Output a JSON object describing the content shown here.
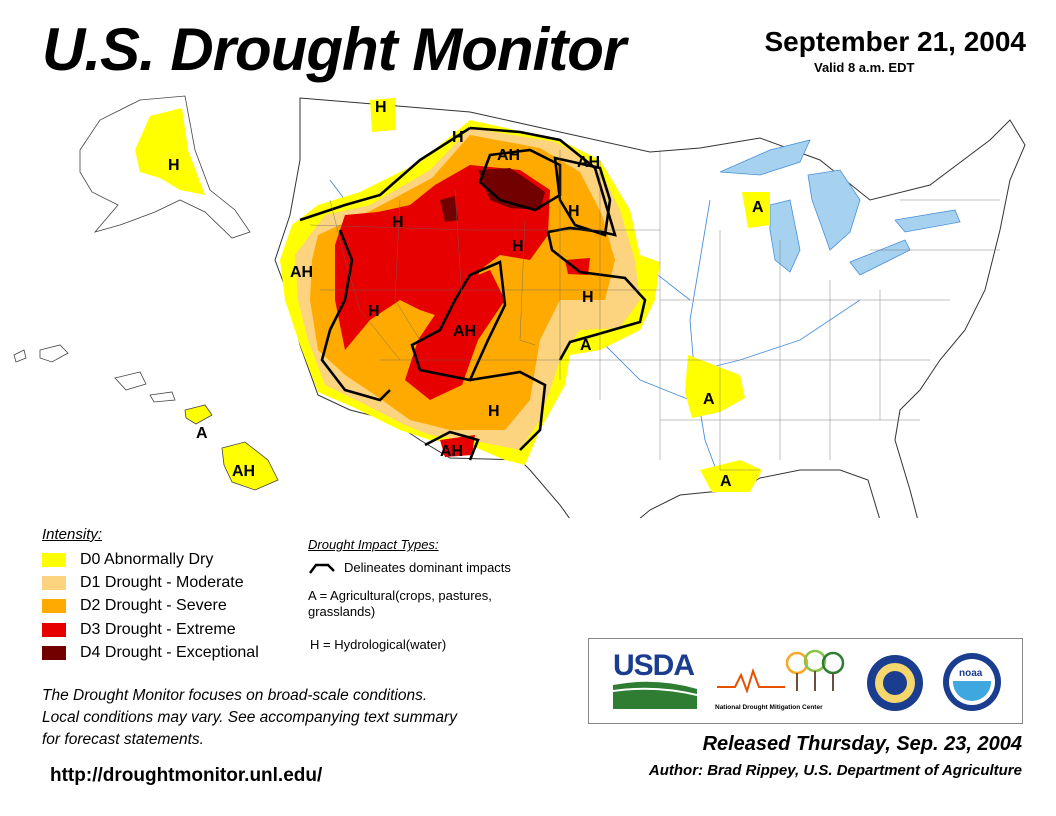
{
  "header": {
    "title": "U.S. Drought Monitor",
    "date": "September 21, 2004",
    "valid": "Valid 8 a.m. EDT"
  },
  "legend": {
    "title": "Intensity:",
    "items": [
      {
        "code": "D0",
        "label": "D0 Abnormally Dry",
        "color": "#ffff00"
      },
      {
        "code": "D1",
        "label": "D1 Drought - Moderate",
        "color": "#fcd37f"
      },
      {
        "code": "D2",
        "label": "D2 Drought - Severe",
        "color": "#ffaa00"
      },
      {
        "code": "D3",
        "label": "D3 Drought - Extreme",
        "color": "#e60000"
      },
      {
        "code": "D4",
        "label": "D4 Drought - Exceptional",
        "color": "#730000"
      }
    ]
  },
  "impact_types": {
    "title": "Drought Impact Types:",
    "line": "Delineates dominant impacts",
    "agricultural": "A = Agricultural(crops, pastures, grasslands)",
    "hydrological": "H = Hydrological(water)"
  },
  "map_labels": {
    "ak": "H",
    "hi_small": "A",
    "hi": "AH",
    "mt_nw": "H",
    "mt": "H",
    "nd_w": "AH",
    "nd_e": "AH",
    "sd": "H",
    "id": "H",
    "wy": "H",
    "ca_n": "AH",
    "nv": "H",
    "co": "AH",
    "ks": "H",
    "ok": "A",
    "nm": "H",
    "az": "AH",
    "mi": "A",
    "ar": "A",
    "la": "A"
  },
  "colors": {
    "d0": "#ffff00",
    "d1": "#fcd37f",
    "d2": "#ffaa00",
    "d3": "#e60000",
    "d4": "#730000",
    "water": "#a6d2f0",
    "river": "#4a90d9"
  },
  "disclaimer": {
    "line1": "The Drought Monitor focuses on broad-scale conditions.",
    "line2": "Local conditions may vary. See accompanying text summary",
    "line3": "for forecast statements."
  },
  "url": "http://droughtmonitor.unl.edu/",
  "logos": {
    "usda": "USDA",
    "ndmc_line": "National Drought Mitigation Center",
    "noaa": "noaa"
  },
  "footer": {
    "released": "Released Thursday, Sep. 23, 2004",
    "author": "Author: Brad Rippey, U.S. Department of Agriculture"
  }
}
